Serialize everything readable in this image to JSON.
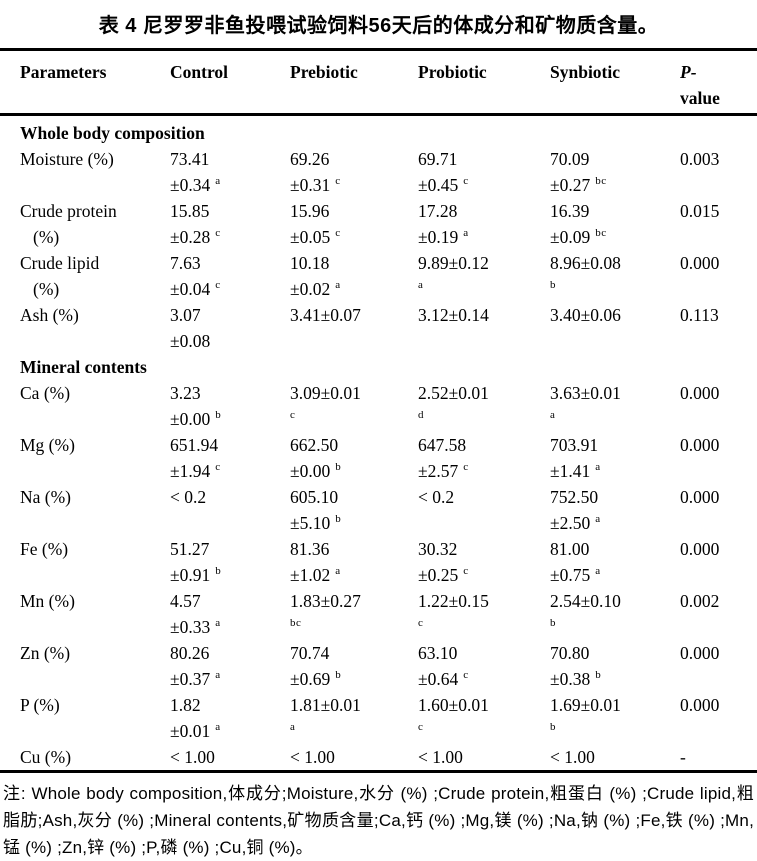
{
  "title": "表 4 尼罗罗非鱼投喂试验饲料56天后的体成分和矿物质含量。",
  "colors": {
    "text": "#000000",
    "background": "#ffffff",
    "rule": "#000000"
  },
  "table": {
    "headers": {
      "parameters": "Parameters",
      "control": "Control",
      "prebiotic": "Prebiotic",
      "probiotic": "Probiotic",
      "synbiotic": "Synbiotic",
      "p_line1": "P-",
      "p_line2": "value"
    },
    "rows": [
      {
        "section": "Whole body composition"
      },
      {
        "param": [
          "Moisture (%)"
        ],
        "cells": [
          [
            [
              "73.41",
              ""
            ],
            [
              "±0.34",
              "a"
            ]
          ],
          [
            [
              "69.26",
              ""
            ],
            [
              "±0.31",
              "c"
            ]
          ],
          [
            [
              "69.71",
              ""
            ],
            [
              "±0.45",
              "c"
            ]
          ],
          [
            [
              "70.09",
              ""
            ],
            [
              "±0.27",
              "bc"
            ]
          ]
        ],
        "p": "0.003"
      },
      {
        "param": [
          "Crude protein",
          "(%)"
        ],
        "cells": [
          [
            [
              "15.85",
              ""
            ],
            [
              "±0.28",
              "c"
            ]
          ],
          [
            [
              "15.96",
              ""
            ],
            [
              "±0.05",
              "c"
            ]
          ],
          [
            [
              "17.28",
              ""
            ],
            [
              "±0.19",
              "a"
            ]
          ],
          [
            [
              "16.39",
              ""
            ],
            [
              "±0.09",
              "bc"
            ]
          ]
        ],
        "p": "0.015"
      },
      {
        "param": [
          "Crude lipid",
          "(%)"
        ],
        "cells": [
          [
            [
              "7.63",
              ""
            ],
            [
              "±0.04",
              "c"
            ]
          ],
          [
            [
              "10.18",
              ""
            ],
            [
              "±0.02",
              "a"
            ]
          ],
          [
            [
              "9.89±0.12",
              ""
            ],
            [
              "",
              "a"
            ]
          ],
          [
            [
              "8.96±0.08",
              ""
            ],
            [
              "",
              "b"
            ]
          ]
        ],
        "p": "0.000"
      },
      {
        "param": [
          "Ash (%)"
        ],
        "cells": [
          [
            [
              "3.07",
              ""
            ],
            [
              "±0.08",
              ""
            ]
          ],
          [
            [
              "3.41±0.07",
              ""
            ]
          ],
          [
            [
              "3.12±0.14",
              ""
            ]
          ],
          [
            [
              "3.40±0.06",
              ""
            ]
          ]
        ],
        "p": "0.113"
      },
      {
        "section": "Mineral contents"
      },
      {
        "param": [
          "Ca (%)"
        ],
        "cells": [
          [
            [
              "3.23",
              ""
            ],
            [
              "±0.00",
              "b"
            ]
          ],
          [
            [
              "3.09±0.01",
              ""
            ],
            [
              "",
              "c"
            ]
          ],
          [
            [
              "2.52±0.01",
              ""
            ],
            [
              "",
              "d"
            ]
          ],
          [
            [
              "3.63±0.01",
              ""
            ],
            [
              "",
              "a"
            ]
          ]
        ],
        "p": "0.000"
      },
      {
        "param": [
          "Mg (%)"
        ],
        "cells": [
          [
            [
              "651.94",
              ""
            ],
            [
              "±1.94",
              "c"
            ]
          ],
          [
            [
              "662.50",
              ""
            ],
            [
              "±0.00",
              "b"
            ]
          ],
          [
            [
              "647.58",
              ""
            ],
            [
              "±2.57",
              "c"
            ]
          ],
          [
            [
              "703.91",
              ""
            ],
            [
              "±1.41",
              "a"
            ]
          ]
        ],
        "p": "0.000"
      },
      {
        "param": [
          "Na (%)"
        ],
        "cells": [
          [
            [
              "< 0.2",
              ""
            ]
          ],
          [
            [
              "605.10",
              ""
            ],
            [
              "±5.10",
              "b"
            ]
          ],
          [
            [
              "< 0.2",
              ""
            ]
          ],
          [
            [
              "752.50",
              ""
            ],
            [
              "±2.50",
              "a"
            ]
          ]
        ],
        "p": "0.000"
      },
      {
        "param": [
          "Fe (%)"
        ],
        "cells": [
          [
            [
              "51.27",
              ""
            ],
            [
              "±0.91",
              "b"
            ]
          ],
          [
            [
              "81.36",
              ""
            ],
            [
              "±1.02",
              "a"
            ]
          ],
          [
            [
              "30.32",
              ""
            ],
            [
              "±0.25",
              "c"
            ]
          ],
          [
            [
              "81.00",
              ""
            ],
            [
              "±0.75",
              "a"
            ]
          ]
        ],
        "p": "0.000"
      },
      {
        "param": [
          "Mn (%)"
        ],
        "cells": [
          [
            [
              "4.57",
              ""
            ],
            [
              "±0.33",
              "a"
            ]
          ],
          [
            [
              "1.83±0.27",
              ""
            ],
            [
              "",
              "bc"
            ]
          ],
          [
            [
              "1.22±0.15",
              ""
            ],
            [
              "",
              "c"
            ]
          ],
          [
            [
              "2.54±0.10",
              ""
            ],
            [
              "",
              "b"
            ]
          ]
        ],
        "p": "0.002"
      },
      {
        "param": [
          "Zn (%)"
        ],
        "cells": [
          [
            [
              "80.26",
              ""
            ],
            [
              "±0.37",
              "a"
            ]
          ],
          [
            [
              "70.74",
              ""
            ],
            [
              "±0.69",
              "b"
            ]
          ],
          [
            [
              "63.10",
              ""
            ],
            [
              "±0.64",
              "c"
            ]
          ],
          [
            [
              "70.80",
              ""
            ],
            [
              "±0.38",
              "b"
            ]
          ]
        ],
        "p": "0.000"
      },
      {
        "param": [
          "P (%)"
        ],
        "cells": [
          [
            [
              "1.82",
              ""
            ],
            [
              "±0.01",
              "a"
            ]
          ],
          [
            [
              "1.81±0.01",
              ""
            ],
            [
              "",
              "a"
            ]
          ],
          [
            [
              "1.60±0.01",
              ""
            ],
            [
              "",
              "c"
            ]
          ],
          [
            [
              "1.69±0.01",
              ""
            ],
            [
              "",
              "b"
            ]
          ]
        ],
        "p": "0.000"
      },
      {
        "param": [
          "Cu (%)"
        ],
        "cells": [
          [
            [
              "< 1.00",
              ""
            ]
          ],
          [
            [
              "< 1.00",
              ""
            ]
          ],
          [
            [
              "< 1.00",
              ""
            ]
          ],
          [
            [
              "< 1.00",
              ""
            ]
          ]
        ],
        "p": "-"
      }
    ]
  },
  "footnote": "注: Whole body composition,体成分;Moisture,水分 (%) ;Crude protein,粗蛋白 (%) ;Crude lipid,粗脂肪;Ash,灰分 (%) ;Mineral contents,矿物质含量;Ca,钙 (%) ;Mg,镁 (%) ;Na,钠 (%) ;Fe,铁 (%) ;Mn,锰 (%) ;Zn,锌 (%) ;P,磷 (%) ;Cu,铜 (%)。"
}
